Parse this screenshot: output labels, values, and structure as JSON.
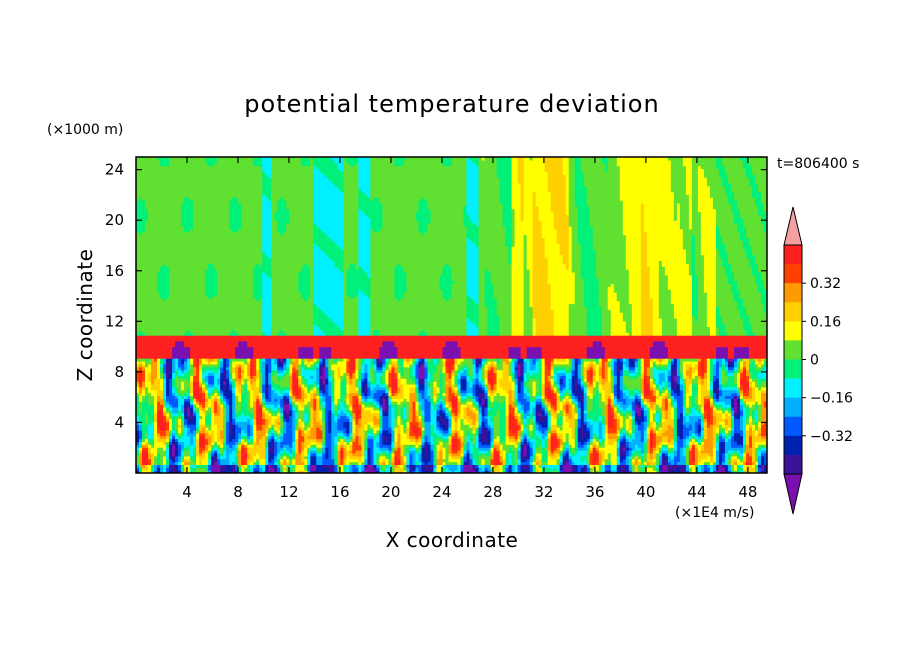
{
  "chart_data": {
    "type": "heatmap",
    "title": "potential temperature deviation",
    "xlabel": "X coordinate",
    "ylabel": "Z coordinate",
    "x_unit": "(×1E4 m/s)",
    "y_unit": "(×1000 m)",
    "time_label": "t=806400 s",
    "xlim": [
      0,
      49.5
    ],
    "ylim": [
      0,
      25
    ],
    "x_ticks": [
      4,
      8,
      12,
      16,
      20,
      24,
      28,
      32,
      36,
      40,
      44,
      48
    ],
    "y_ticks": [
      4,
      8,
      12,
      16,
      20,
      24
    ],
    "colorbar": {
      "levels": [
        -0.48,
        -0.4,
        -0.32,
        -0.24,
        -0.16,
        -0.08,
        0,
        0.08,
        0.16,
        0.24,
        0.32,
        0.4
      ],
      "colors": [
        "#7a10b0",
        "#3a139a",
        "#0020b0",
        "#0058ff",
        "#00b0ff",
        "#00f0ff",
        "#00f07a",
        "#60e030",
        "#ffff00",
        "#ffd000",
        "#ff9a00",
        "#ff4000",
        "#ff2020",
        "#f4a0a0"
      ],
      "labels": [
        "0.32",
        "0.16",
        "0",
        "−0.16",
        "−0.32"
      ],
      "label_values": [
        0.32,
        0.16,
        0,
        -0.16,
        -0.32
      ]
    },
    "features": {
      "upper_layer_value": 0.0,
      "tropopause_band_top": 10.8,
      "tropopause_band_bottom": 9.0,
      "tropopause_band_value": 0.45,
      "cyan_columns_x": [
        [
          13.8,
          16.2
        ],
        [
          9.8,
          10.6
        ],
        [
          17.5,
          18.3
        ],
        [
          26.0,
          26.8
        ]
      ],
      "warm_region_x": [
        27.0,
        45.5
      ]
    }
  }
}
